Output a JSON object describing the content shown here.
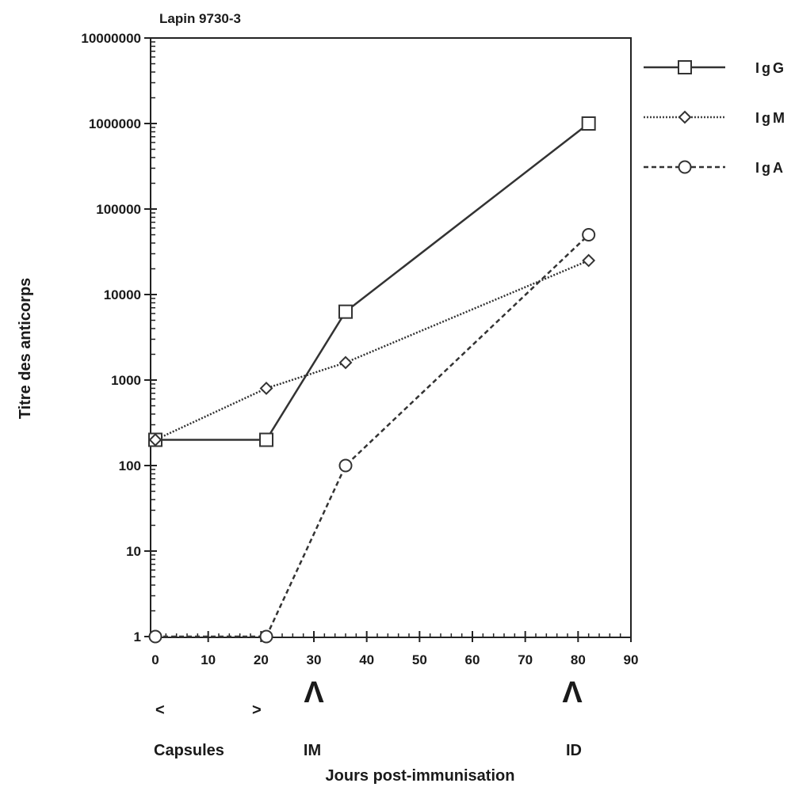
{
  "chart_data": {
    "type": "line",
    "title": "Lapin  9730-3",
    "xlabel": "Jours  post-immunisation",
    "ylabel": "Titre des anticorps",
    "xlim": [
      0,
      90
    ],
    "ylim": [
      1,
      10000000
    ],
    "yscale": "log",
    "x_ticks": [
      "0",
      "10",
      "20",
      "30",
      "40",
      "50",
      "60",
      "70",
      "80",
      "90"
    ],
    "y_ticks": [
      "1",
      "10",
      "100",
      "1000",
      "10000",
      "100000",
      "1000000",
      "10000000"
    ],
    "grid": false,
    "legend_position": "right",
    "series": [
      {
        "name": "IgG",
        "line_style": "solid",
        "marker": "square",
        "x": [
          0,
          21,
          36,
          82
        ],
        "y": [
          200,
          200,
          6300,
          1000000
        ]
      },
      {
        "name": "IgM",
        "line_style": "dotted",
        "marker": "diamond",
        "x": [
          0,
          21,
          36,
          82
        ],
        "y": [
          200,
          800,
          1600,
          25000
        ]
      },
      {
        "name": "IgA",
        "line_style": "dashed",
        "marker": "circle",
        "x": [
          0,
          21,
          36,
          82
        ],
        "y": [
          1,
          1,
          100,
          50000
        ]
      }
    ],
    "annotations": {
      "capsules_left": "<",
      "capsules_right": ">",
      "capsules": "Capsules",
      "im_arrow": "Λ",
      "im": "IM",
      "id_arrow": "Λ",
      "id": "ID"
    }
  }
}
